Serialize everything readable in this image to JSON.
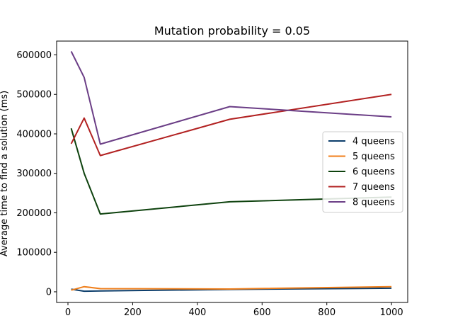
{
  "chart_data": {
    "type": "line",
    "title": "Mutation probability = 0.05",
    "xlabel": "",
    "ylabel": "Average time to find a solution (ms)",
    "xlim": [
      -35,
      1050
    ],
    "ylim": [
      -27000,
      635000
    ],
    "xticks": [
      0,
      200,
      400,
      600,
      800,
      1000
    ],
    "yticks": [
      0,
      100000,
      200000,
      300000,
      400000,
      500000,
      600000
    ],
    "grid": false,
    "legend_position": "center-right",
    "series": [
      {
        "name": "4 queens",
        "color": "#0b3d6b",
        "x": [
          10,
          50,
          100,
          500,
          1000
        ],
        "y": [
          6500,
          1500,
          2000,
          6000,
          9000
        ]
      },
      {
        "name": "5 queens",
        "color": "#f07f1b",
        "x": [
          10,
          50,
          100,
          500,
          1000
        ],
        "y": [
          4000,
          13000,
          8000,
          7000,
          13000
        ]
      },
      {
        "name": "6 queens",
        "color": "#0e420e",
        "x": [
          10,
          50,
          100,
          500,
          1000
        ],
        "y": [
          414000,
          300000,
          197000,
          228000,
          240000
        ]
      },
      {
        "name": "7 queens",
        "color": "#b22121",
        "x": [
          10,
          50,
          100,
          500,
          1000
        ],
        "y": [
          375000,
          440000,
          345000,
          437000,
          500000
        ]
      },
      {
        "name": "8 queens",
        "color": "#6b3e86",
        "x": [
          10,
          50,
          100,
          500,
          1000
        ],
        "y": [
          609000,
          543000,
          374000,
          469000,
          443000
        ]
      }
    ]
  }
}
